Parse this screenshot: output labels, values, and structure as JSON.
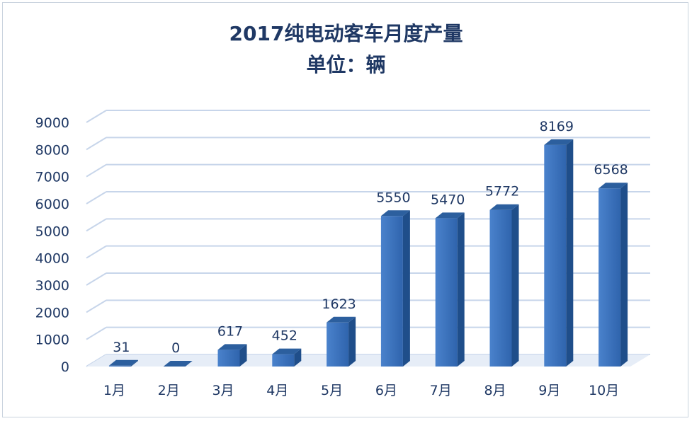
{
  "chart_data": {
    "type": "bar",
    "title": "2017纯电动客车月度产量",
    "subtitle": "单位：辆",
    "categories": [
      "1月",
      "2月",
      "3月",
      "4月",
      "5月",
      "6月",
      "7月",
      "8月",
      "9月",
      "10月"
    ],
    "values": [
      31,
      0,
      617,
      452,
      1623,
      5550,
      5470,
      5772,
      8169,
      6568
    ],
    "ylim": [
      0,
      9000
    ],
    "yticks": [
      0,
      1000,
      2000,
      3000,
      4000,
      5000,
      6000,
      7000,
      8000,
      9000
    ],
    "grid": true,
    "legend": "none",
    "colors": {
      "bar_front": "#3a70b8",
      "bar_side": "#1f4e8a",
      "bar_top": "#2c5f9e",
      "grid": "#c7d5ea",
      "text": "#1f3864"
    }
  }
}
